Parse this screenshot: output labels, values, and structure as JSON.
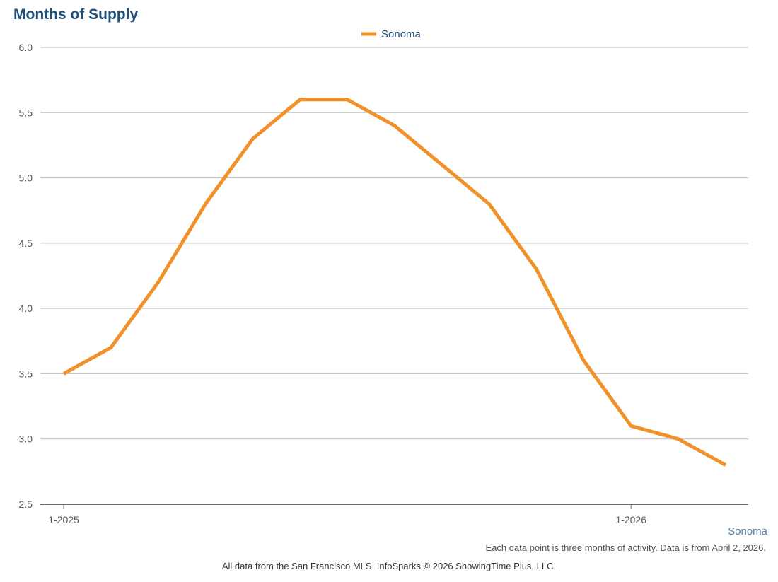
{
  "chart_data": {
    "type": "line",
    "title": "Months of Supply",
    "x": [
      "1-2025",
      "2-2025",
      "3-2025",
      "4-2025",
      "5-2025",
      "6-2025",
      "7-2025",
      "8-2025",
      "9-2025",
      "10-2025",
      "11-2025",
      "12-2025",
      "1-2026",
      "2-2026",
      "3-2026"
    ],
    "x_tick_labels": [
      "1-2025",
      "1-2026"
    ],
    "series": [
      {
        "name": "Sonoma",
        "color": "#f0912a",
        "values": [
          3.5,
          3.7,
          4.2,
          4.8,
          5.3,
          5.6,
          5.6,
          5.4,
          5.1,
          4.8,
          4.3,
          3.6,
          3.1,
          3.0,
          2.8
        ]
      }
    ],
    "y_ticks": [
      "2.5",
      "3.0",
      "3.5",
      "4.0",
      "4.5",
      "5.0",
      "5.5",
      "6.0"
    ],
    "ylim": [
      2.5,
      6.0
    ],
    "xlabel": "",
    "ylabel": "",
    "grid": true,
    "legend_placement": "top-center"
  },
  "source_label": "Sonoma",
  "footnote": "Each data point is three months of activity. Data is from April 2, 2026.",
  "credit": "All data from the San Francisco MLS. InfoSparks © 2026 ShowingTime Plus, LLC.",
  "colors": {
    "title": "#1f4e79",
    "series": "#f0912a",
    "grid": "#bfbfbf",
    "axis": "#6b6b6b"
  }
}
